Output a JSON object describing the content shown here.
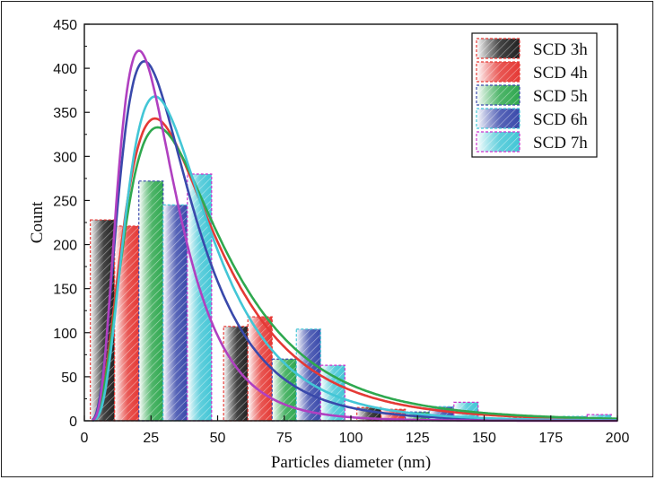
{
  "chart_data": {
    "type": "bar",
    "xlabel": "Particles diameter (nm)",
    "ylabel": "Count",
    "xlim": [
      0,
      200
    ],
    "ylim": [
      0,
      450
    ],
    "xticks": [
      0,
      25,
      50,
      75,
      100,
      125,
      150,
      175,
      200
    ],
    "yticks": [
      0,
      50,
      100,
      150,
      200,
      250,
      300,
      350,
      400,
      450
    ],
    "legend_position": "top-right",
    "bin_centers": [
      25,
      75,
      125,
      175
    ],
    "bar_width_data": 9.1,
    "series": [
      {
        "name": "SCD 3h",
        "color": "#e53935",
        "bar_fill": "#222222",
        "values": [
          228,
          107,
          15,
          3
        ],
        "fit_peak_x": 21,
        "fit_peak_y": 420
      },
      {
        "name": "SCD 4h",
        "color": "#e53935",
        "bar_fill": "#e53935",
        "values": [
          221,
          118,
          13,
          3
        ],
        "fit_peak_x": 27,
        "fit_peak_y": 343
      },
      {
        "name": "SCD 5h",
        "color": "#3949ab",
        "bar_fill": "#2fa84f",
        "values": [
          272,
          70,
          10,
          2
        ],
        "fit_peak_x": 27,
        "fit_peak_y": 333
      },
      {
        "name": "SCD 6h",
        "color": "#43c6d6",
        "bar_fill": "#3949ab",
        "values": [
          245,
          104,
          16,
          5
        ],
        "fit_peak_x": 23,
        "fit_peak_y": 408
      },
      {
        "name": "SCD 7h",
        "color": "#cc33cc",
        "bar_fill": "#43c6d6",
        "values": [
          280,
          63,
          21,
          7
        ],
        "fit_peak_x": 27,
        "fit_peak_y": 368
      }
    ],
    "fit_curves": [
      {
        "color": "#e53935",
        "mode": 26.5,
        "peak": 343,
        "sigma": 0.62
      },
      {
        "color": "#2fa84f",
        "mode": 27.5,
        "peak": 333,
        "sigma": 0.63
      },
      {
        "color": "#3949ab",
        "mode": 22.5,
        "peak": 408,
        "sigma": 0.58
      },
      {
        "color": "#43c6d6",
        "mode": 26.5,
        "peak": 368,
        "sigma": 0.56
      },
      {
        "color": "#b040c0",
        "mode": 20.5,
        "peak": 420,
        "sigma": 0.52
      }
    ]
  }
}
